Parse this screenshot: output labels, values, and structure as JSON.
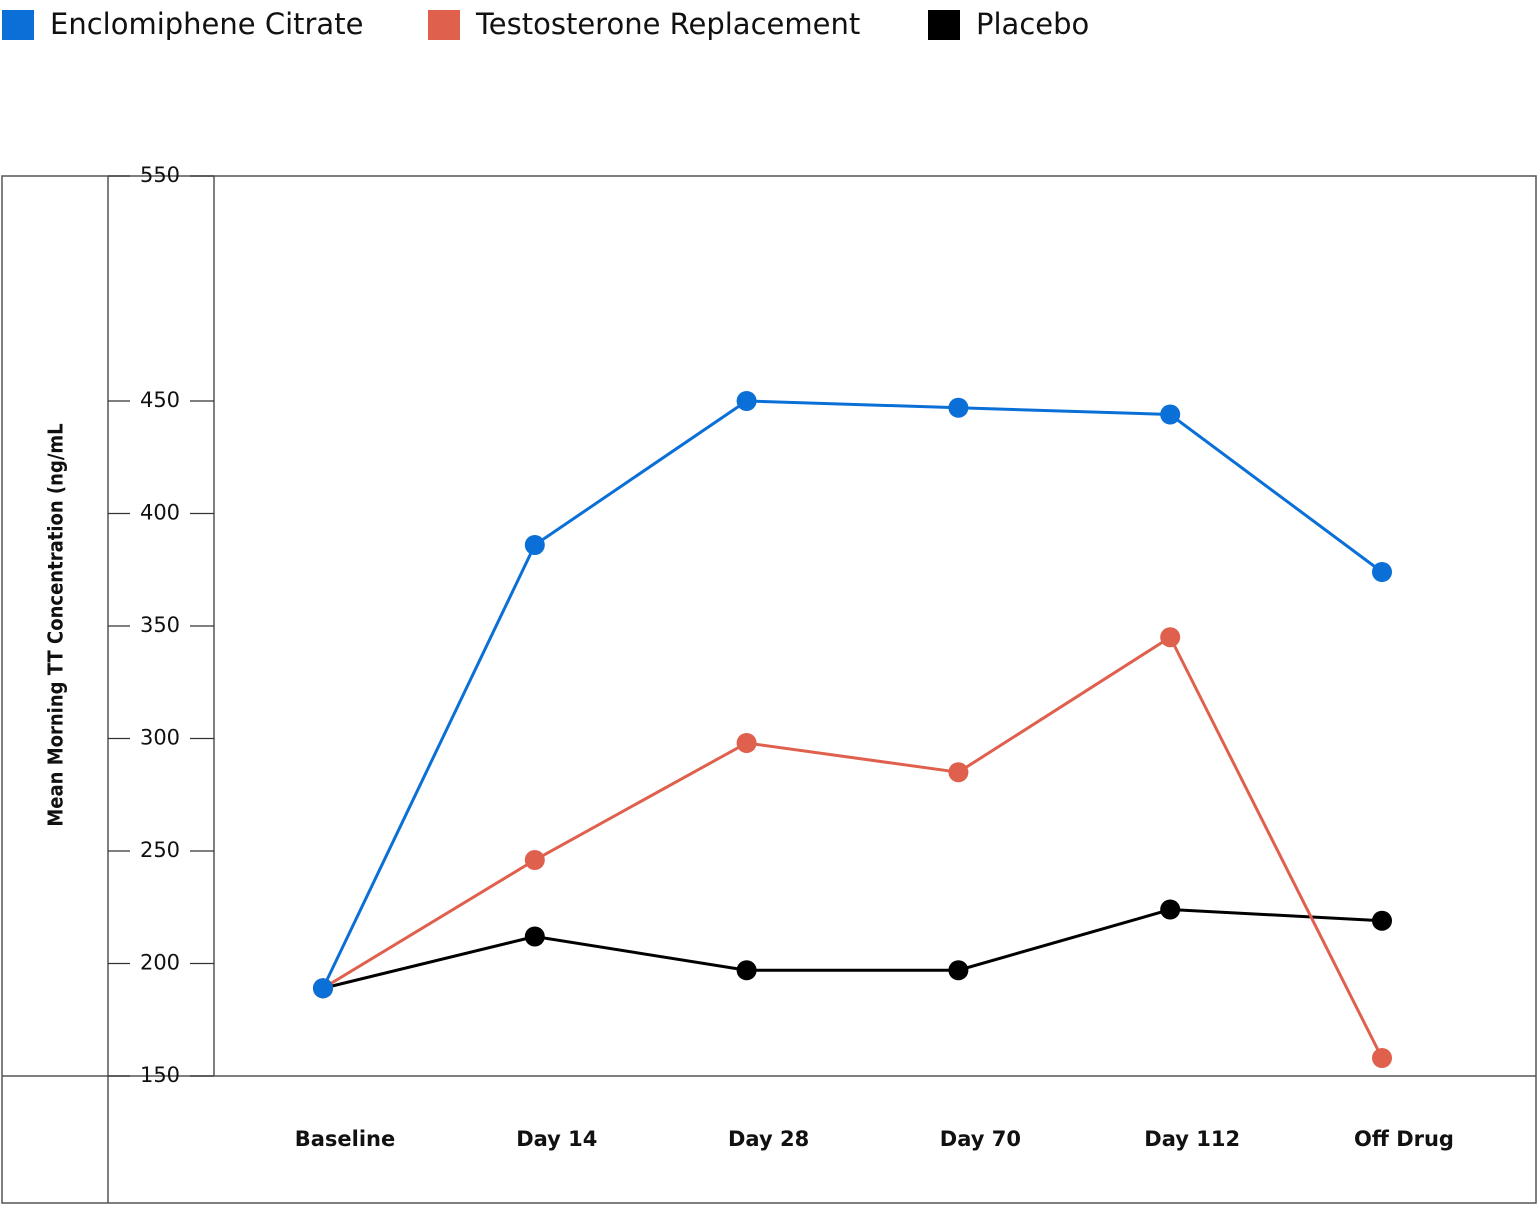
{
  "chart_data": {
    "type": "line",
    "ylabel": "Mean Morning TT Concentration (ng/mL",
    "categories": [
      "Baseline",
      "Day 14",
      "Day 28",
      "Day 70",
      "Day 112",
      "Off Drug"
    ],
    "series": [
      {
        "name": "Enclomiphene Citrate",
        "color": "#0a6fd6",
        "values": [
          189,
          386,
          450,
          447,
          444,
          374
        ]
      },
      {
        "name": "Testosterone Replacement",
        "color": "#e0604e",
        "values": [
          189,
          246,
          298,
          285,
          345,
          158
        ]
      },
      {
        "name": "Placebo",
        "color": "#000000",
        "values": [
          189,
          212,
          197,
          197,
          224,
          219
        ]
      }
    ],
    "ylim": [
      150,
      550
    ],
    "yticks": [
      150,
      200,
      250,
      300,
      350,
      400,
      450,
      550
    ],
    "legend": "top"
  }
}
